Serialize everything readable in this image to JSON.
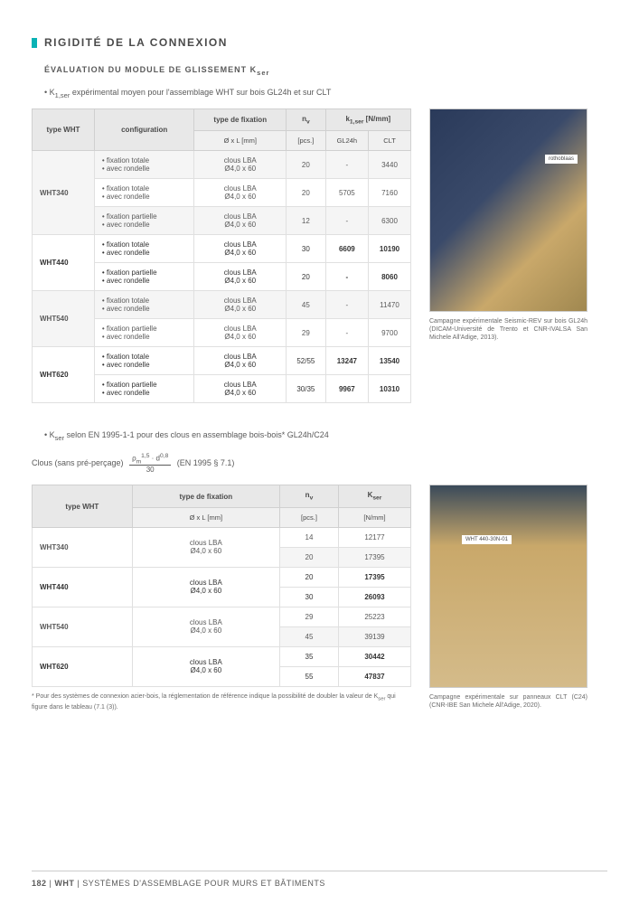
{
  "section_title": "RIGIDITÉ DE LA CONNEXION",
  "sub1": "ÉVALUATION DU MODULE DE GLISSEMENT K",
  "sub1_sub": "ser",
  "bullet1": "K",
  "bullet1_sub": "1,ser",
  "bullet1_rest": " expérimental moyen pour l'assemblage WHT sur bois GL24h et sur CLT",
  "t1": {
    "h": {
      "c1": "type WHT",
      "c2": "configuration",
      "c3": "type de fixation",
      "c3b": "Ø x L [mm]",
      "c4": "n",
      "c4sub": "v",
      "c4b": "[pcs.]",
      "c5": "k",
      "c5sub": "1,ser",
      "c5unit": " [N/mm]",
      "c5a": "GL24h",
      "c5b": "CLT"
    },
    "rows": [
      {
        "wht": "WHT340",
        "span": 3,
        "rs": [
          {
            "cfg": [
              "• fixation totale",
              "• avec rondelle"
            ],
            "fix": [
              "clous LBA",
              "Ø4,0 x 60"
            ],
            "n": "20",
            "g": "-",
            "c": "3440",
            "st": 1
          },
          {
            "cfg": [
              "• fixation totale",
              "• avec rondelle"
            ],
            "fix": [
              "clous LBA",
              "Ø4,0 x 60"
            ],
            "n": "20",
            "g": "5705",
            "c": "7160",
            "st": 0
          },
          {
            "cfg": [
              "• fixation partielle",
              "• avec rondelle"
            ],
            "fix": [
              "clous LBA",
              "Ø4,0 x 60"
            ],
            "n": "12",
            "g": "-",
            "c": "6300",
            "st": 1
          }
        ]
      },
      {
        "wht": "WHT440",
        "span": 2,
        "hl": 1,
        "rs": [
          {
            "cfg": [
              "• fixation totale",
              "• avec rondelle"
            ],
            "fix": [
              "clous LBA",
              "Ø4,0 x 60"
            ],
            "n": "30",
            "g": "6609",
            "c": "10190",
            "st": 0,
            "b": 1
          },
          {
            "cfg": [
              "• fixation partielle",
              "• avec rondelle"
            ],
            "fix": [
              "clous LBA",
              "Ø4,0 x 60"
            ],
            "n": "20",
            "g": "-",
            "c": "8060",
            "st": 0,
            "b": 1
          }
        ]
      },
      {
        "wht": "WHT540",
        "span": 2,
        "rs": [
          {
            "cfg": [
              "• fixation totale",
              "• avec rondelle"
            ],
            "fix": [
              "clous LBA",
              "Ø4,0 x 60"
            ],
            "n": "45",
            "g": "-",
            "c": "11470",
            "st": 1
          },
          {
            "cfg": [
              "• fixation partielle",
              "• avec rondelle"
            ],
            "fix": [
              "clous LBA",
              "Ø4,0 x 60"
            ],
            "n": "29",
            "g": "-",
            "c": "9700",
            "st": 0
          }
        ]
      },
      {
        "wht": "WHT620",
        "span": 2,
        "hl": 1,
        "rs": [
          {
            "cfg": [
              "• fixation totale",
              "• avec rondelle"
            ],
            "fix": [
              "clous LBA",
              "Ø4,0 x 60"
            ],
            "n": "52/55",
            "g": "13247",
            "c": "13540",
            "st": 0,
            "b": 1
          },
          {
            "cfg": [
              "• fixation partielle",
              "• avec rondelle"
            ],
            "fix": [
              "clous LBA",
              "Ø4,0 x 60"
            ],
            "n": "30/35",
            "g": "9967",
            "c": "10310",
            "st": 0,
            "b": 1
          }
        ]
      }
    ]
  },
  "caption1": "Campagne expérimentale Seismic-REV sur bois GL24h (DICAM-Université de Trento et CNR-IVALSA San Michele All'Adige, 2013).",
  "bullet2": "K",
  "bullet2_sub": "ser",
  "bullet2_rest": " selon EN 1995-1-1 pour des clous en assemblage bois-bois* GL24h/C24",
  "formula_label": "Clous (sans pré-perçage)",
  "formula_num_a": "ρ",
  "formula_num_a_sub": "m",
  "formula_num_exp1": "1,5",
  "formula_num_b": "· d",
  "formula_num_exp2": "0,8",
  "formula_den": "30",
  "formula_ref": "(EN 1995 § 7.1)",
  "t2": {
    "h": {
      "c1": "type WHT",
      "c2": "type de fixation",
      "c2b": "Ø x L [mm]",
      "c3": "n",
      "c3sub": "v",
      "c3b": "[pcs.]",
      "c4": "K",
      "c4sub": "ser",
      "c4b": "[N/mm]"
    },
    "rows": [
      {
        "wht": "WHT340",
        "span": 2,
        "fix": [
          "clous LBA",
          "Ø4,0 x 60"
        ],
        "rs": [
          {
            "n": "14",
            "k": "12177",
            "st": 0
          },
          {
            "n": "20",
            "k": "17395",
            "st": 1
          }
        ]
      },
      {
        "wht": "WHT440",
        "span": 2,
        "hl": 1,
        "fix": [
          "clous LBA",
          "Ø4,0 x 60"
        ],
        "rs": [
          {
            "n": "20",
            "k": "17395",
            "b": 1
          },
          {
            "n": "30",
            "k": "26093",
            "b": 1
          }
        ]
      },
      {
        "wht": "WHT540",
        "span": 2,
        "fix": [
          "clous LBA",
          "Ø4,0 x 60"
        ],
        "rs": [
          {
            "n": "29",
            "k": "25223",
            "st": 0
          },
          {
            "n": "45",
            "k": "39139",
            "st": 1
          }
        ]
      },
      {
        "wht": "WHT620",
        "span": 2,
        "hl": 1,
        "fix": [
          "clous LBA",
          "Ø4,0 x 60"
        ],
        "rs": [
          {
            "n": "35",
            "k": "30442",
            "b": 1
          },
          {
            "n": "55",
            "k": "47837",
            "b": 1
          }
        ]
      }
    ]
  },
  "footnote_star": "*",
  "footnote_text": "  Pour des systèmes de connexion acier-bois, la réglementation de référence indique la possibilité de doubler la valeur de K",
  "footnote_sub": "ser",
  "footnote_rest": " qui figure dans le tableau (7.1 (3)).",
  "caption2": "Campagne expérimentale sur panneaux CLT (C24) (CNR-IBE San Michele All'Adige, 2020).",
  "footer_page": "182",
  "footer_sep1": " | ",
  "footer_wht": "WHT",
  "footer_sep2": " | ",
  "footer_text": "SYSTÈMES D'ASSEMBLAGE POUR MURS ET BÂTIMENTS",
  "photo_label1": "rothoblaas",
  "photo_label2": "WHT 440-30N-01"
}
